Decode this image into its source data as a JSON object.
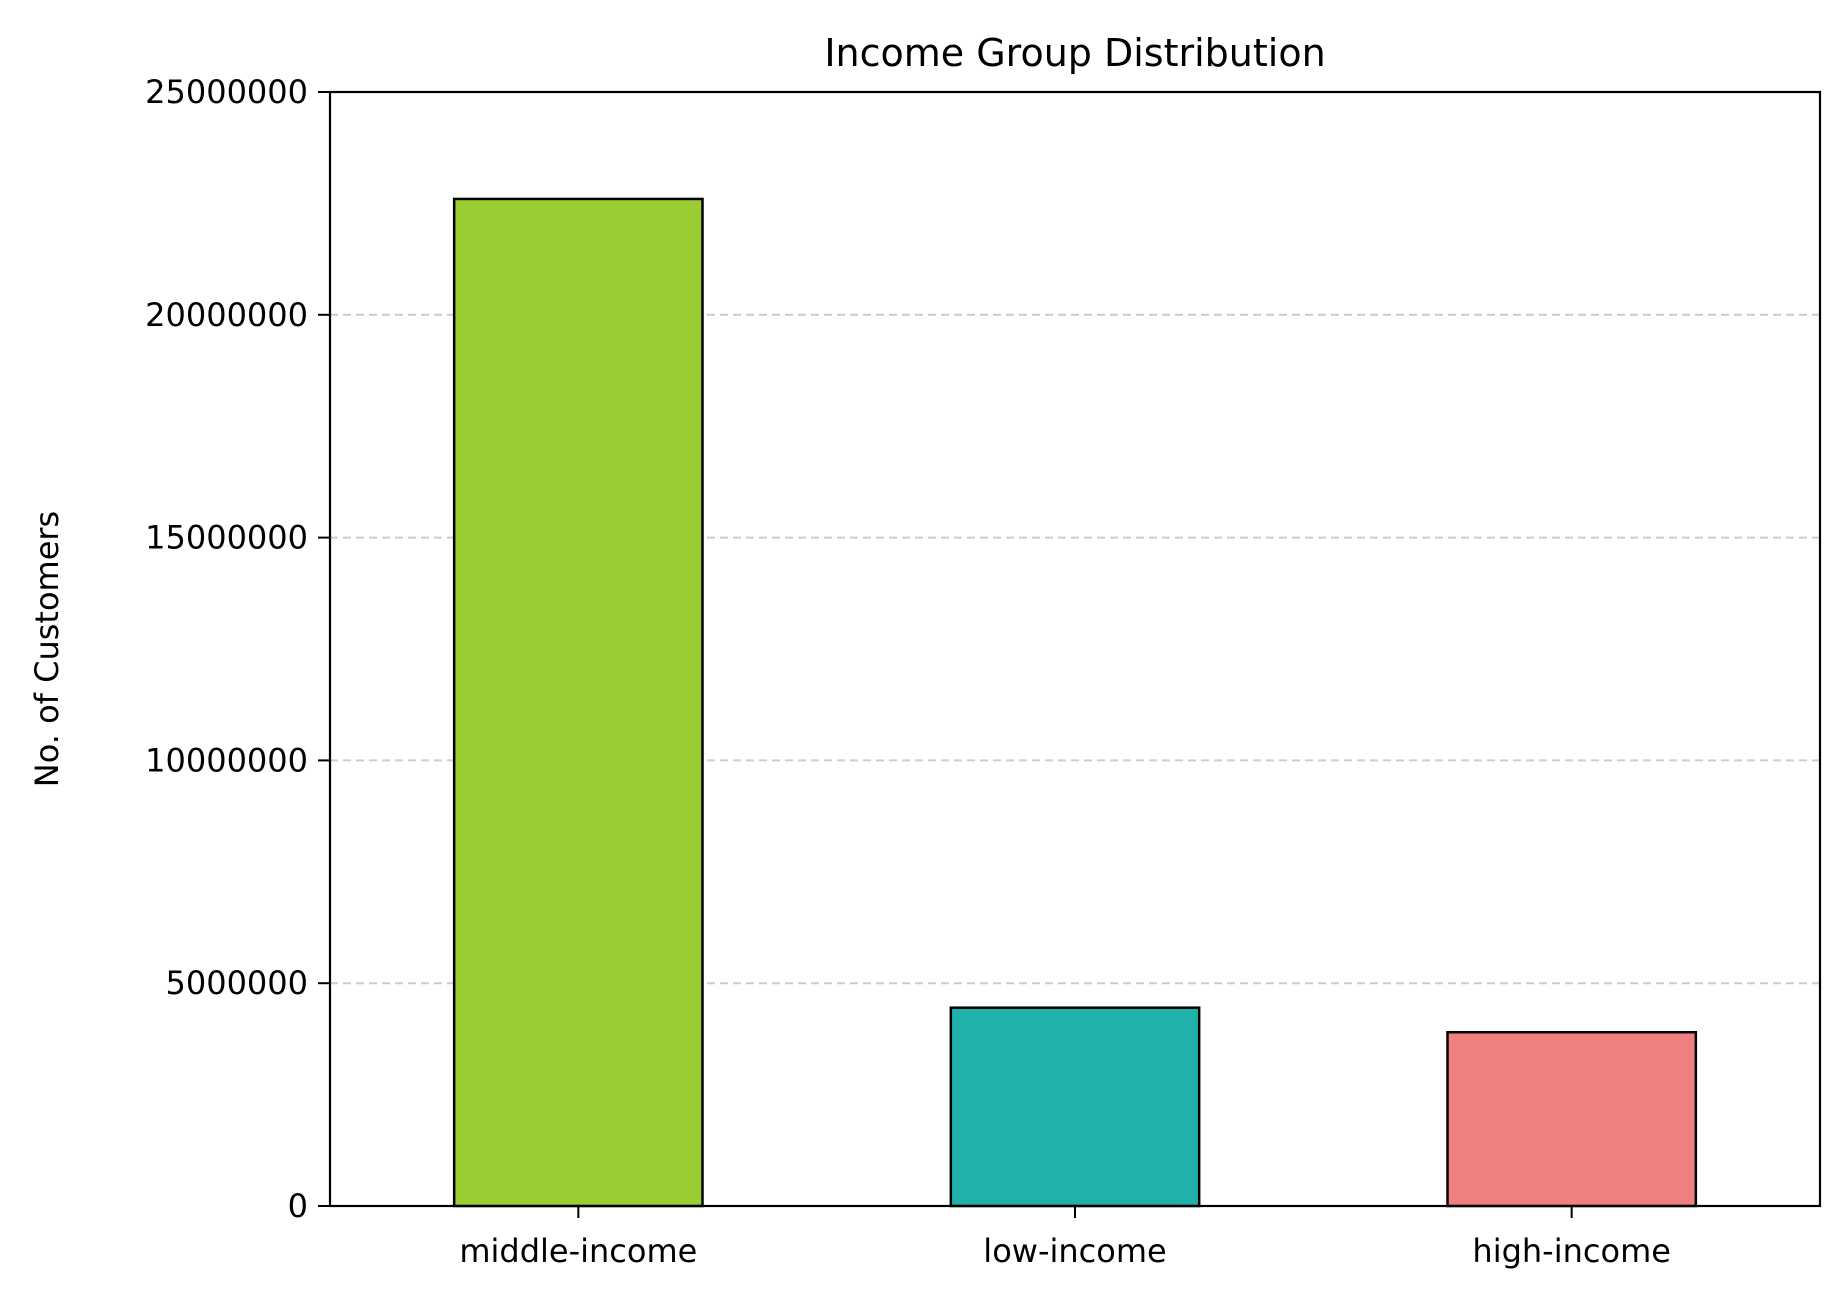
{
  "chart_data": {
    "type": "bar",
    "title": "Income Group Distribution",
    "xlabel": "",
    "ylabel": "No. of Customers",
    "categories": [
      "middle-income",
      "low-income",
      "high-income"
    ],
    "values": [
      22600000,
      4450000,
      3900000
    ],
    "colors": [
      "#9acd32",
      "#20b2aa",
      "#f08080"
    ],
    "edge_color": "#000000",
    "ylim": [
      0,
      25000000
    ],
    "yticks": [
      0,
      5000000,
      10000000,
      15000000,
      20000000,
      25000000
    ],
    "ytick_labels": [
      "0",
      "5000000",
      "10000000",
      "15000000",
      "20000000",
      "25000000"
    ],
    "grid": {
      "axis": "y",
      "style": "dashed",
      "color": "#cccccc"
    },
    "legend": "none"
  }
}
